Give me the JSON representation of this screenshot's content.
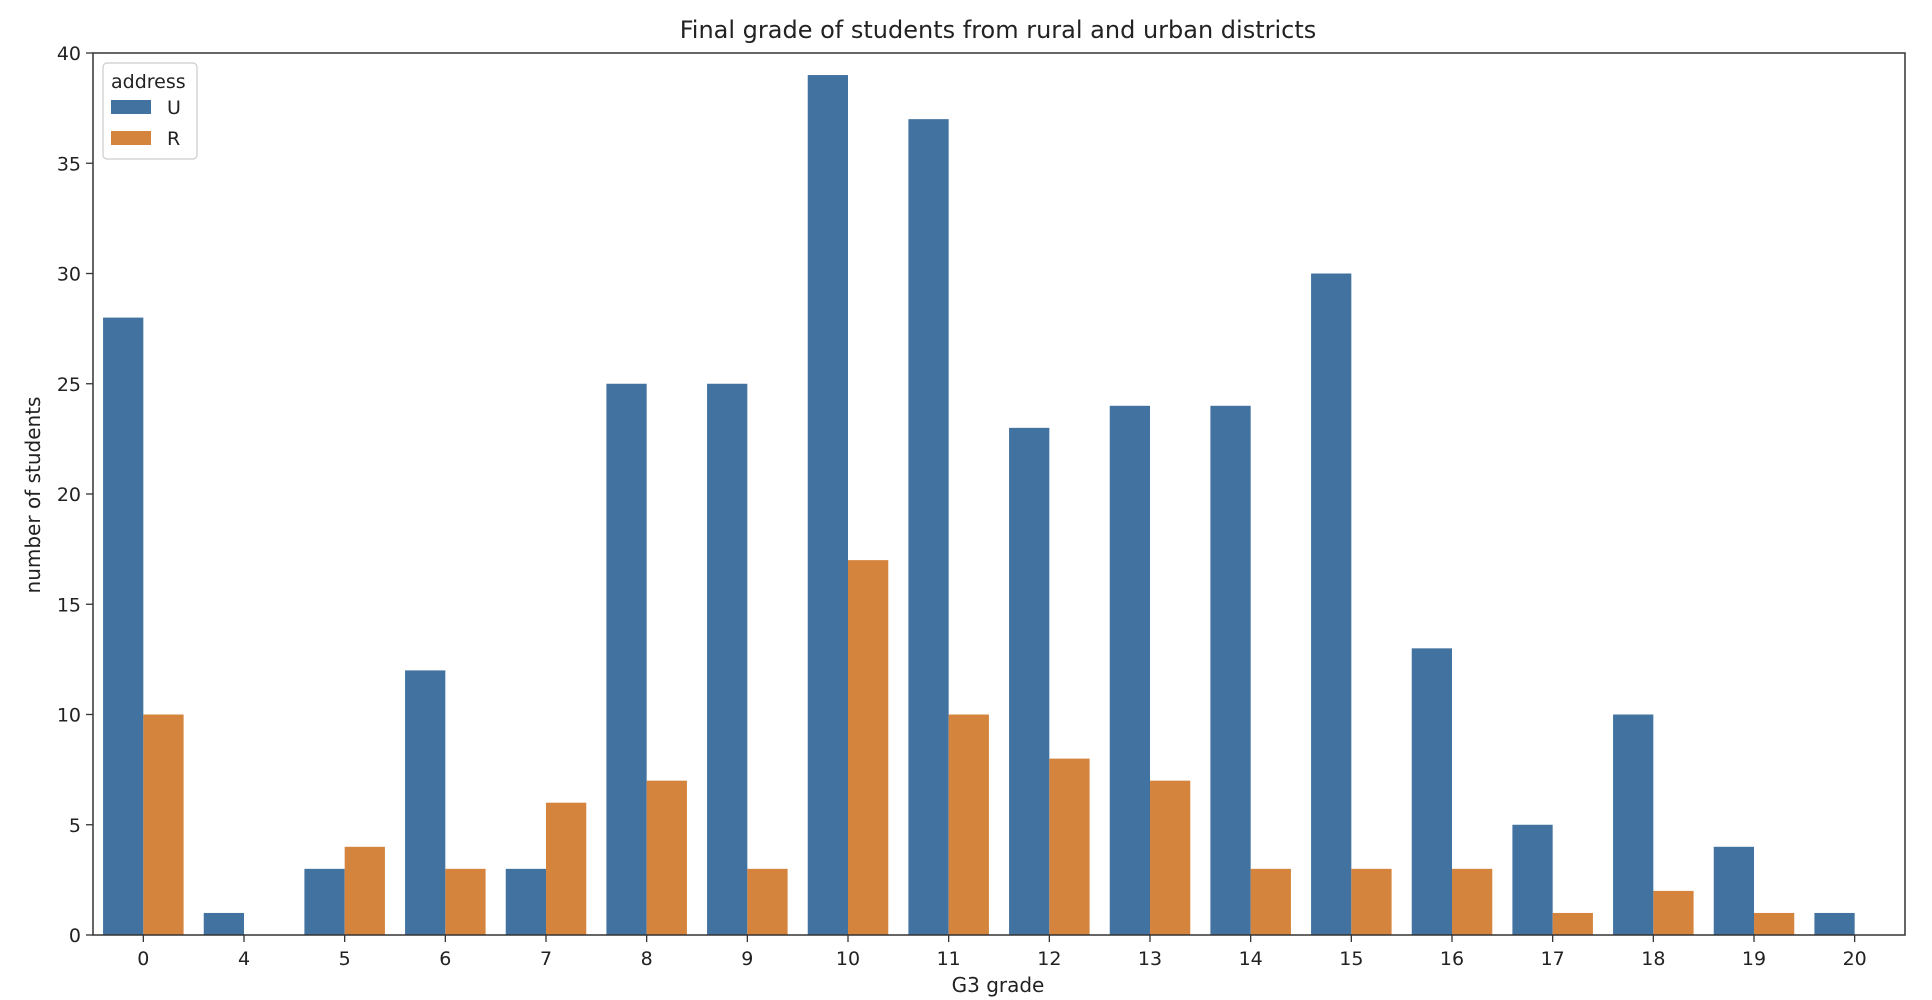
{
  "chart_data": {
    "type": "bar",
    "title": "Final grade of students from rural and urban districts",
    "xlabel": "G3 grade",
    "ylabel": "number of students",
    "categories": [
      "0",
      "4",
      "5",
      "6",
      "7",
      "8",
      "9",
      "10",
      "11",
      "12",
      "13",
      "14",
      "15",
      "16",
      "17",
      "18",
      "19",
      "20"
    ],
    "series": [
      {
        "name": "U",
        "color": "#4272a0",
        "values": [
          28,
          1,
          3,
          12,
          3,
          25,
          25,
          39,
          37,
          23,
          24,
          24,
          30,
          13,
          5,
          10,
          4,
          1
        ]
      },
      {
        "name": "R",
        "color": "#d5843e",
        "values": [
          10,
          0,
          4,
          3,
          6,
          7,
          3,
          17,
          10,
          8,
          7,
          3,
          3,
          3,
          1,
          2,
          1,
          0
        ]
      }
    ],
    "ylim": [
      0,
      40
    ],
    "yticks": [
      0,
      5,
      10,
      15,
      20,
      25,
      30,
      35,
      40
    ],
    "grid": false,
    "legend": {
      "title": "address",
      "placement": "top-left"
    }
  }
}
